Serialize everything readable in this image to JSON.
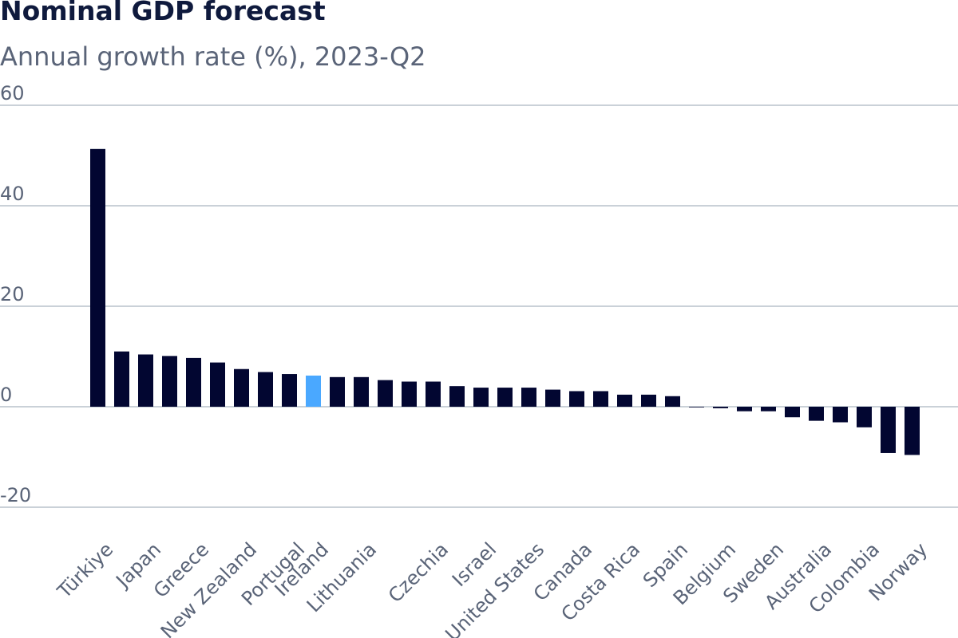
{
  "chart_data": {
    "type": "bar",
    "title": "Nominal GDP forecast",
    "subtitle": "Annual growth rate (%), 2023-Q2",
    "ylim": [
      -20,
      60
    ],
    "yticks": [
      60,
      40,
      20,
      0,
      -20
    ],
    "grid": true,
    "colors": {
      "default": "#020631",
      "highlight": "#4aa8ff",
      "grid": "#b8c2cc",
      "text": "#5a6478",
      "title": "#0f1a3d"
    },
    "highlight_index": 9,
    "labeled_categories": [
      "Türkiye",
      "Japan",
      "Greece",
      "New Zealand",
      "Portugal",
      "Ireland",
      "Lithuania",
      "Czechia",
      "Israel",
      "United States",
      "Canada",
      "Costa Rica",
      "Spain",
      "Belgium",
      "Sweden",
      "Australia",
      "Colombia",
      "Norway"
    ],
    "label_bar_indices": [
      0,
      2,
      4,
      6,
      8,
      9,
      11,
      14,
      16,
      18,
      20,
      22,
      24,
      26,
      28,
      30,
      32,
      34
    ],
    "values": [
      51.3,
      11.0,
      10.4,
      10.1,
      9.7,
      8.8,
      7.5,
      6.9,
      6.5,
      6.2,
      5.9,
      5.9,
      5.3,
      5.0,
      5.0,
      4.1,
      3.8,
      3.8,
      3.8,
      3.4,
      3.1,
      3.1,
      2.4,
      2.4,
      2.1,
      0.0,
      -0.3,
      -0.9,
      -0.9,
      -2.1,
      -2.8,
      -3.1,
      -4.1,
      -9.2,
      -9.6
    ]
  }
}
